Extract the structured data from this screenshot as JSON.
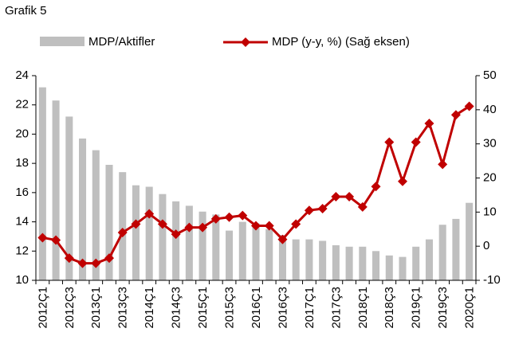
{
  "chart_data": {
    "type": "bar-line",
    "title": "Grafik 5",
    "categories": [
      "2012Ç1",
      null,
      "2012Ç3",
      null,
      "2013Ç1",
      null,
      "2013Ç3",
      null,
      "2014Ç1",
      null,
      "2014Ç3",
      null,
      "2015Ç1",
      null,
      "2015Ç3",
      null,
      "2016Ç1",
      null,
      "2016Ç3",
      null,
      "2017Ç1",
      null,
      "2017Ç3",
      null,
      "2018Ç1",
      null,
      "2018Ç3",
      null,
      "2019Ç1",
      null,
      "2019Ç3",
      null,
      "2020Ç1"
    ],
    "series": [
      {
        "name": "MDP/Aktifler",
        "type": "bar",
        "color": "#bfbfbf",
        "axis": "y",
        "values": [
          23.2,
          22.3,
          21.2,
          19.7,
          18.9,
          17.9,
          17.4,
          16.5,
          16.4,
          15.9,
          15.4,
          15.1,
          14.7,
          14.5,
          13.4,
          14.0,
          13.9,
          13.5,
          13.1,
          12.8,
          12.8,
          12.7,
          12.4,
          12.3,
          12.3,
          12.0,
          11.7,
          11.6,
          12.3,
          12.8,
          13.8,
          14.2,
          15.3
        ]
      },
      {
        "name": "MDP (y-y, %) (Sağ eksen)",
        "type": "line",
        "color": "#c00000",
        "axis": "y2",
        "values": [
          2.5,
          1.8,
          -3.5,
          -5,
          -5,
          -3.5,
          4,
          6.5,
          9.5,
          6.5,
          3.5,
          5.5,
          5.5,
          8,
          8.5,
          9,
          6,
          6,
          2,
          6.5,
          10.5,
          11,
          14.5,
          14.5,
          11.5,
          17.5,
          30.5,
          19,
          30.5,
          36,
          24,
          38.5,
          41
        ]
      }
    ],
    "ylim": [
      10,
      24
    ],
    "yticks": [
      10,
      12,
      14,
      16,
      18,
      20,
      22,
      24
    ],
    "y2lim": [
      -10,
      50
    ],
    "y2ticks": [
      -10,
      0,
      10,
      20,
      30,
      40,
      50
    ]
  }
}
